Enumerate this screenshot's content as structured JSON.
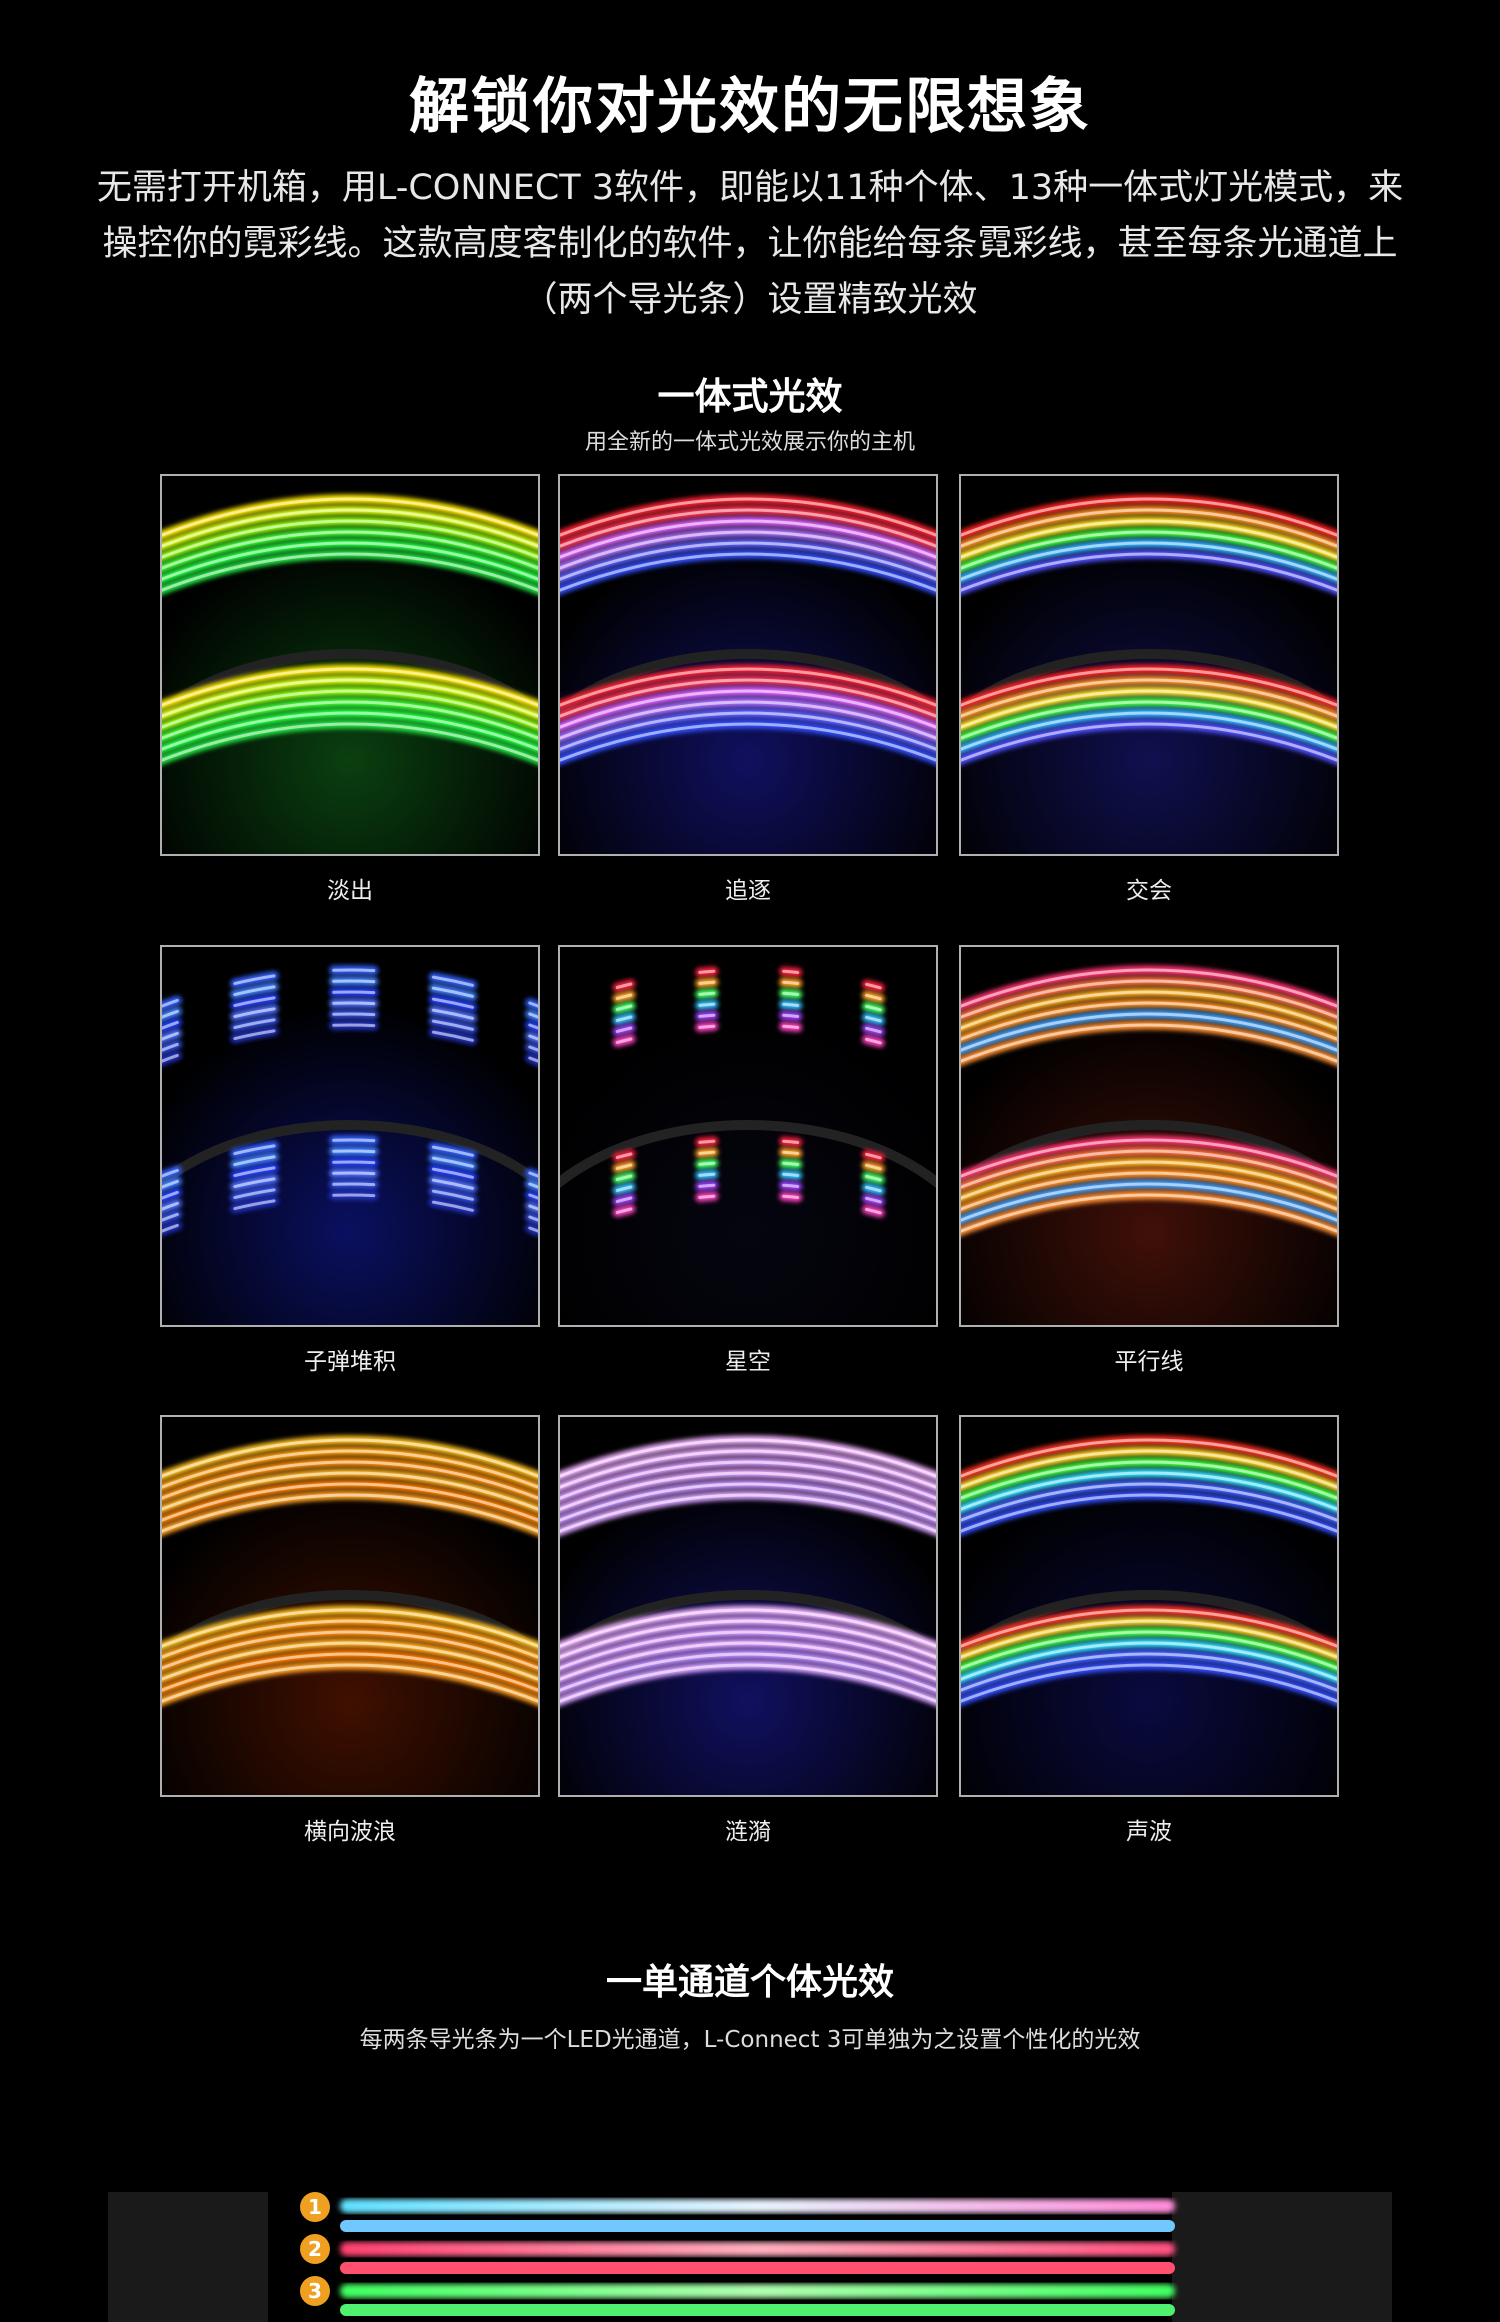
{
  "header": {
    "title": "解锁你对光效的无限想象",
    "description": "无需打开机箱，用L-CONNECT 3软件，即能以11种个体、13种一体式灯光模式，来操控你的霓彩线。这款高度客制化的软件，让你能给每条霓彩线，甚至每条光通道上（两个导光条）设置精致光效"
  },
  "unified": {
    "title": "一体式光效",
    "subtitle": "用全新的一体式光效展示你的主机",
    "items": [
      "淡出",
      "追逐",
      "交会",
      "子弹堆积",
      "星空",
      "平行线",
      "横向波浪",
      "涟漪",
      "声波"
    ]
  },
  "individual": {
    "title": "一单通道个体光效",
    "subtitle": "每两条导光条为一个LED光通道，L-Connect 3可单独为之设置个性化的光效",
    "channels": [
      "1",
      "2",
      "3"
    ]
  }
}
